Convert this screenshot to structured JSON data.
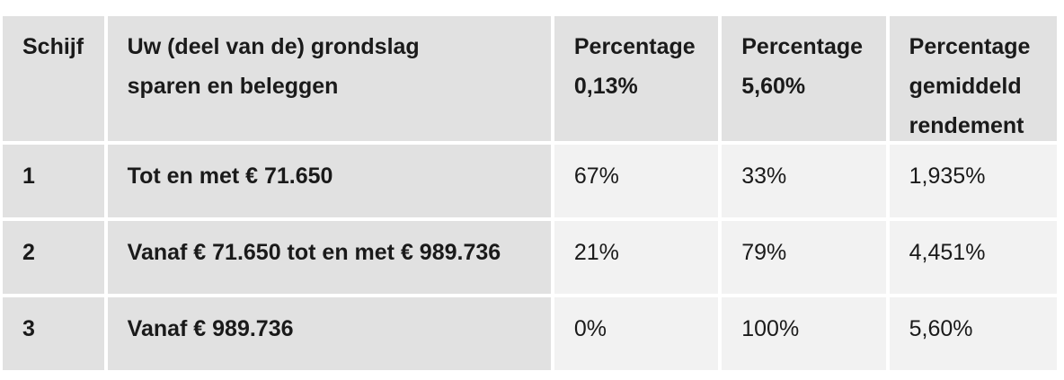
{
  "header": {
    "col1": "Schijf",
    "col2_line1": "Uw (deel van de) grondslag",
    "col2_line2": "sparen en beleggen",
    "col3_line1": "Percentage",
    "col3_line2": "0,13%",
    "col4_line1": "Percentage",
    "col4_line2": "5,60%",
    "col5_line1": "Percentage",
    "col5_line2": "gemiddeld",
    "col5_line3": "rendement"
  },
  "rows": [
    {
      "schijf": "1",
      "grondslag": "Tot en met € 71.650",
      "pct_013": "67%",
      "pct_560": "33%",
      "gemiddeld": "1,935%"
    },
    {
      "schijf": "2",
      "grondslag": "Vanaf € 71.650 tot en met € 989.736",
      "pct_013": "21%",
      "pct_560": "79%",
      "gemiddeld": "4,451%"
    },
    {
      "schijf": "3",
      "grondslag": "Vanaf € 989.736",
      "pct_013": "0%",
      "pct_560": "100%",
      "gemiddeld": "5,60%"
    }
  ]
}
